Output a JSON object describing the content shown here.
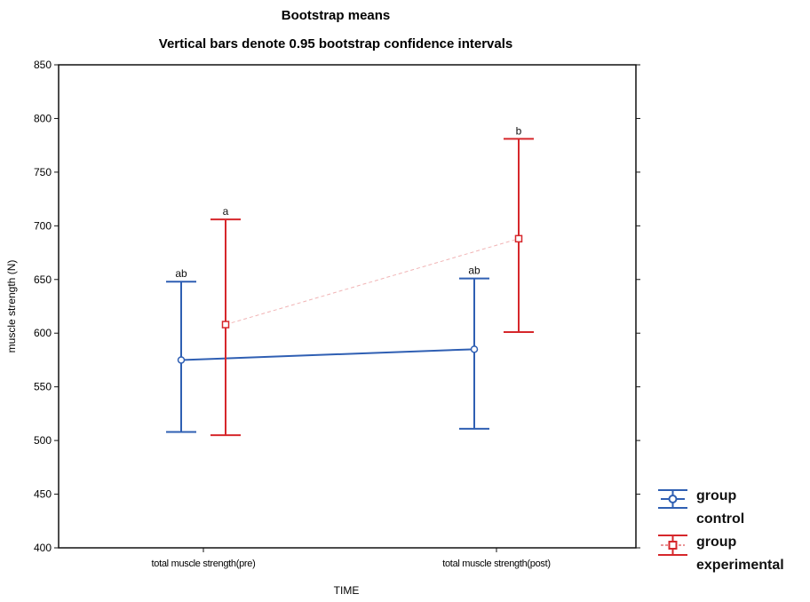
{
  "chart_data": {
    "type": "line",
    "title": "Bootstrap means",
    "subtitle": "Vertical bars denote 0.95 bootstrap confidence intervals",
    "xlabel": "TIME",
    "ylabel": "muscle strength (N)",
    "categories": [
      "total muscle strength(pre)",
      "total muscle strength(post)"
    ],
    "ylim": [
      400,
      850
    ],
    "yticks": [
      400,
      450,
      500,
      550,
      600,
      650,
      700,
      750,
      800,
      850
    ],
    "legend_position": "bottom-right, outside plot",
    "series": [
      {
        "name_line1": "group",
        "name_line2": "control",
        "color": "#2f5fb3",
        "marker": "circle",
        "line_style": "solid",
        "values": [
          575,
          585
        ],
        "ci_lower": [
          508,
          511
        ],
        "ci_upper": [
          648,
          651
        ],
        "labels": [
          "ab",
          "ab"
        ]
      },
      {
        "name_line1": "group",
        "name_line2": "experimental",
        "color": "#d6272b",
        "marker": "square",
        "line_style": "dashed-light",
        "values": [
          608,
          688
        ],
        "ci_lower": [
          505,
          601
        ],
        "ci_upper": [
          706,
          781
        ],
        "labels": [
          "a",
          "b"
        ]
      }
    ]
  }
}
